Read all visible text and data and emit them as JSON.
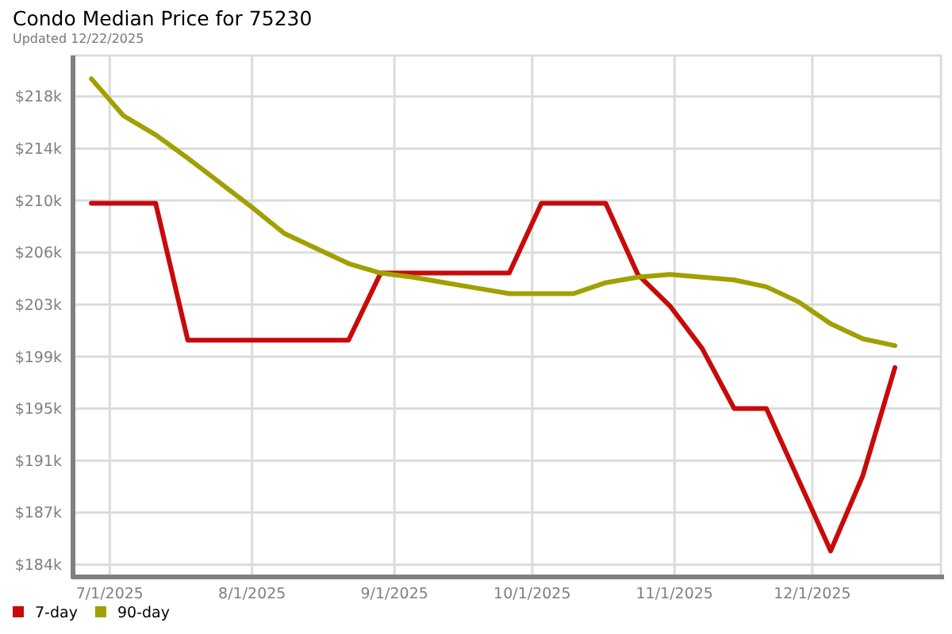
{
  "chart_data": {
    "type": "line",
    "title": "Condo Median Price for 75230",
    "subtitle": "Updated 12/22/2025",
    "x": [
      "2025-06-27",
      "2025-07-04",
      "2025-07-11",
      "2025-07-18",
      "2025-07-25",
      "2025-08-01",
      "2025-08-08",
      "2025-08-15",
      "2025-08-22",
      "2025-08-29",
      "2025-09-05",
      "2025-09-12",
      "2025-09-19",
      "2025-09-26",
      "2025-10-03",
      "2025-10-10",
      "2025-10-17",
      "2025-10-24",
      "2025-10-31",
      "2025-11-07",
      "2025-11-14",
      "2025-11-21",
      "2025-11-28",
      "2025-12-05",
      "2025-12-12",
      "2025-12-19"
    ],
    "series": [
      {
        "name": "7-day",
        "color": "#c80a0a",
        "values": [
          210000,
          210000,
          210000,
          200000,
          200000,
          200000,
          200000,
          200000,
          200000,
          204900,
          204900,
          204900,
          204900,
          204900,
          210000,
          210000,
          210000,
          204800,
          202500,
          199400,
          195000,
          195000,
          189800,
          184600,
          190100,
          198000
        ]
      },
      {
        "name": "90-day",
        "color": "#a0a000",
        "values": [
          219100,
          216400,
          215000,
          213300,
          211500,
          209700,
          207800,
          206700,
          205600,
          204900,
          204600,
          204200,
          203800,
          203400,
          203400,
          203400,
          204200,
          204600,
          204800,
          204600,
          204400,
          203900,
          202800,
          201200,
          200100,
          199600
        ]
      }
    ],
    "xlim": [
      "2025-06-23",
      "2025-12-29"
    ],
    "xticks": [
      {
        "value": "2025-07-01",
        "label": "7/1/2025"
      },
      {
        "value": "2025-08-01",
        "label": "8/1/2025"
      },
      {
        "value": "2025-09-01",
        "label": "9/1/2025"
      },
      {
        "value": "2025-10-01",
        "label": "10/1/2025"
      },
      {
        "value": "2025-11-01",
        "label": "11/1/2025"
      },
      {
        "value": "2025-12-01",
        "label": "12/1/2025"
      }
    ],
    "ylim": [
      182700,
      220800
    ],
    "yticks": [
      {
        "value": 183600,
        "label": "$184k"
      },
      {
        "value": 187400,
        "label": "$187k"
      },
      {
        "value": 191200,
        "label": "$191k"
      },
      {
        "value": 195000,
        "label": "$195k"
      },
      {
        "value": 198800,
        "label": "$199k"
      },
      {
        "value": 202600,
        "label": "$203k"
      },
      {
        "value": 206400,
        "label": "$206k"
      },
      {
        "value": 210200,
        "label": "$210k"
      },
      {
        "value": 214000,
        "label": "$214k"
      },
      {
        "value": 217800,
        "label": "$218k"
      }
    ],
    "grid": true,
    "legend": "bottom left",
    "line_style": "solid"
  }
}
